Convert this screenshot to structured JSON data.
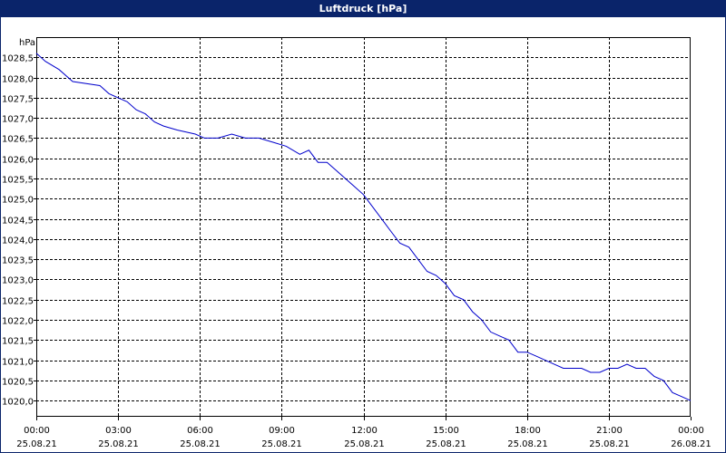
{
  "window": {
    "title": "Luftdruck [hPa]"
  },
  "colors": {
    "line": "#0000cc",
    "title_bar": "#0a246a",
    "grid": "#000000"
  },
  "chart_data": {
    "type": "line",
    "title": "Luftdruck [hPa]",
    "ylabel": "hPa",
    "xlabel": "",
    "grid": true,
    "ylim": [
      1019.6,
      1029.0
    ],
    "xlim": [
      "2021-08-25 00:00",
      "2021-08-26 00:00"
    ],
    "y_ticks": [
      "1020,0",
      "1020,5",
      "1021,0",
      "1021,5",
      "1022,0",
      "1022,5",
      "1023,0",
      "1023,5",
      "1024,0",
      "1024,5",
      "1025,0",
      "1025,5",
      "1026,0",
      "1026,5",
      "1027,0",
      "1027,5",
      "1028,0",
      "1028,5"
    ],
    "x_ticks": [
      {
        "time": "00:00",
        "date": "25.08.21"
      },
      {
        "time": "03:00",
        "date": "25.08.21"
      },
      {
        "time": "06:00",
        "date": "25.08.21"
      },
      {
        "time": "09:00",
        "date": "25.08.21"
      },
      {
        "time": "12:00",
        "date": "25.08.21"
      },
      {
        "time": "15:00",
        "date": "25.08.21"
      },
      {
        "time": "18:00",
        "date": "25.08.21"
      },
      {
        "time": "21:00",
        "date": "25.08.21"
      },
      {
        "time": "00:00",
        "date": "26.08.21"
      }
    ],
    "series": [
      {
        "x": [
          "00:00",
          "00:20",
          "00:50",
          "01:20",
          "02:20",
          "02:40",
          "03:00",
          "03:20",
          "03:40",
          "04:00",
          "04:20",
          "04:40",
          "05:10",
          "05:50",
          "06:10",
          "06:40",
          "07:10",
          "07:40",
          "08:10",
          "08:40",
          "09:10",
          "09:40",
          "10:00",
          "10:20",
          "10:40",
          "11:00",
          "11:20",
          "11:40",
          "12:00",
          "12:20",
          "12:40",
          "13:00",
          "13:20",
          "13:40",
          "14:00",
          "14:20",
          "14:40",
          "15:00",
          "15:20",
          "15:40",
          "16:00",
          "16:20",
          "16:40",
          "17:00",
          "17:20",
          "17:40",
          "18:00",
          "18:20",
          "18:40",
          "19:00",
          "19:20",
          "19:40",
          "20:00",
          "20:20",
          "20:40",
          "21:00",
          "21:20",
          "21:40",
          "22:00",
          "22:20",
          "22:40",
          "23:00",
          "23:20",
          "23:40",
          "24:00"
        ],
        "y": [
          1028.6,
          1028.4,
          1028.2,
          1027.9,
          1027.8,
          1027.6,
          1027.5,
          1027.4,
          1027.2,
          1027.1,
          1026.9,
          1026.8,
          1026.7,
          1026.6,
          1026.5,
          1026.5,
          1026.6,
          1026.5,
          1026.5,
          1026.4,
          1026.3,
          1026.1,
          1026.2,
          1025.9,
          1025.9,
          1025.7,
          1025.5,
          1025.3,
          1025.1,
          1024.8,
          1024.5,
          1024.2,
          1023.9,
          1023.8,
          1023.5,
          1023.2,
          1023.1,
          1022.9,
          1022.6,
          1022.5,
          1022.2,
          1022.0,
          1021.7,
          1021.6,
          1021.5,
          1021.2,
          1021.2,
          1021.1,
          1021.0,
          1020.9,
          1020.8,
          1020.8,
          1020.8,
          1020.7,
          1020.7,
          1020.8,
          1020.8,
          1020.9,
          1020.8,
          1020.8,
          1020.6,
          1020.5,
          1020.2,
          1020.1,
          1020.0
        ]
      }
    ]
  }
}
